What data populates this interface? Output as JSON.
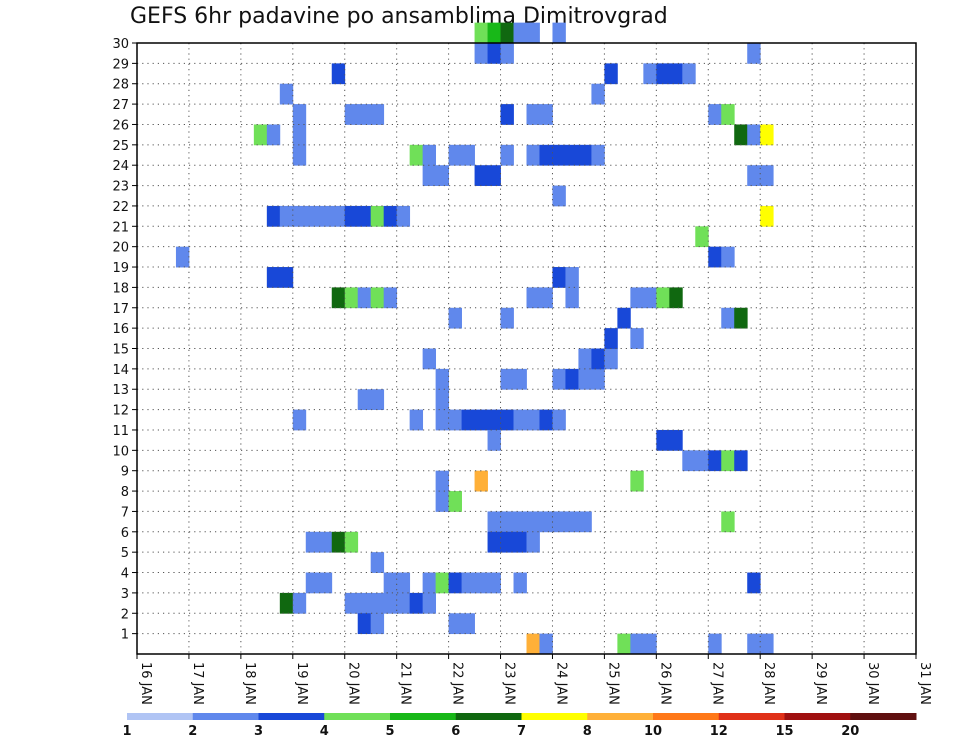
{
  "chart_data": {
    "type": "heatmap",
    "title": "GEFS 6hr padavine po ansamblima Dimitrovgrad",
    "xlabel": "",
    "ylabel": "",
    "x_ticks": [
      "16 JAN",
      "17 JAN",
      "18 JAN",
      "19 JAN",
      "20 JAN",
      "21 JAN",
      "22 JAN",
      "23 JAN",
      "24 JAN",
      "25 JAN",
      "26 JAN",
      "27 JAN",
      "28 JAN",
      "29 JAN",
      "30 JAN",
      "31 JAN"
    ],
    "y_ticks": [
      "1",
      "2",
      "3",
      "4",
      "5",
      "6",
      "7",
      "8",
      "9",
      "10",
      "11",
      "12",
      "13",
      "14",
      "15",
      "16",
      "17",
      "18",
      "19",
      "20",
      "21",
      "22",
      "23",
      "24",
      "25",
      "26",
      "27",
      "28",
      "29",
      "30"
    ],
    "xlim": [
      0,
      60
    ],
    "ylim": [
      0,
      30
    ],
    "grid": true,
    "colorbar": {
      "labels": [
        "1",
        "2",
        "3",
        "4",
        "5",
        "6",
        "7",
        "8",
        "10",
        "12",
        "15",
        "20"
      ],
      "colors": [
        "#b0c4f4",
        "#6088ec",
        "#1848d8",
        "#70e058",
        "#18b818",
        "#106810",
        "#ffff00",
        "#ffb038",
        "#ff7818",
        "#e03018",
        "#a01010",
        "#601010"
      ]
    },
    "cells": [
      [
        3,
        19,
        1
      ],
      [
        9,
        25,
        3
      ],
      [
        10,
        25,
        1
      ],
      [
        10,
        21,
        2
      ],
      [
        11,
        21,
        1
      ],
      [
        12,
        21,
        1
      ],
      [
        13,
        21,
        1
      ],
      [
        14,
        21,
        1
      ],
      [
        11,
        27,
        1
      ],
      [
        11,
        2,
        5
      ],
      [
        12,
        2,
        1
      ],
      [
        12,
        26,
        1
      ],
      [
        12,
        25,
        1
      ],
      [
        12,
        24,
        1
      ],
      [
        12,
        11,
        1
      ],
      [
        10,
        18,
        2
      ],
      [
        11,
        18,
        2
      ],
      [
        13,
        3,
        1
      ],
      [
        13,
        5,
        1
      ],
      [
        14,
        3,
        1
      ],
      [
        14,
        5,
        1
      ],
      [
        15,
        21,
        1
      ],
      [
        15,
        5,
        5
      ],
      [
        15,
        17,
        5
      ],
      [
        16,
        5,
        3
      ],
      [
        16,
        17,
        3
      ],
      [
        16,
        21,
        2
      ],
      [
        17,
        21,
        2
      ],
      [
        18,
        21,
        3
      ],
      [
        19,
        21,
        2
      ],
      [
        20,
        21,
        1
      ],
      [
        15,
        28,
        2
      ],
      [
        16,
        2,
        1
      ],
      [
        17,
        2,
        1
      ],
      [
        18,
        2,
        1
      ],
      [
        17,
        1,
        2
      ],
      [
        18,
        1,
        1
      ],
      [
        17,
        12,
        1
      ],
      [
        18,
        12,
        1
      ],
      [
        17,
        17,
        1
      ],
      [
        18,
        17,
        3
      ],
      [
        19,
        17,
        1
      ],
      [
        16,
        26,
        1
      ],
      [
        17,
        26,
        1
      ],
      [
        18,
        26,
        1
      ],
      [
        18,
        4,
        1
      ],
      [
        19,
        3,
        1
      ],
      [
        20,
        3,
        1
      ],
      [
        19,
        2,
        1
      ],
      [
        20,
        2,
        1
      ],
      [
        21,
        2,
        2
      ],
      [
        22,
        2,
        1
      ],
      [
        21,
        24,
        3
      ],
      [
        22,
        24,
        1
      ],
      [
        22,
        23,
        1
      ],
      [
        23,
        23,
        1
      ],
      [
        21,
        11,
        1
      ],
      [
        22,
        14,
        1
      ],
      [
        22,
        3,
        1
      ],
      [
        23,
        3,
        3
      ],
      [
        24,
        3,
        2
      ],
      [
        25,
        3,
        1
      ],
      [
        26,
        3,
        1
      ],
      [
        27,
        3,
        1
      ],
      [
        23,
        13,
        1
      ],
      [
        23,
        12,
        1
      ],
      [
        23,
        11,
        1
      ],
      [
        24,
        11,
        1
      ],
      [
        23,
        8,
        1
      ],
      [
        23,
        7,
        1
      ],
      [
        24,
        7,
        3
      ],
      [
        25,
        11,
        2
      ],
      [
        26,
        11,
        2
      ],
      [
        27,
        11,
        2
      ],
      [
        28,
        11,
        2
      ],
      [
        29,
        11,
        1
      ],
      [
        30,
        11,
        1
      ],
      [
        31,
        11,
        2
      ],
      [
        32,
        11,
        1
      ],
      [
        24,
        1,
        1
      ],
      [
        25,
        1,
        1
      ],
      [
        24,
        16,
        1
      ],
      [
        24,
        24,
        1
      ],
      [
        25,
        24,
        1
      ],
      [
        26,
        8,
        7
      ],
      [
        26,
        23,
        2
      ],
      [
        27,
        23,
        2
      ],
      [
        26,
        30,
        3
      ],
      [
        27,
        30,
        4
      ],
      [
        28,
        30,
        5
      ],
      [
        29,
        30,
        1
      ],
      [
        30,
        30,
        1
      ],
      [
        32,
        30,
        1
      ],
      [
        26,
        29,
        1
      ],
      [
        27,
        29,
        2
      ],
      [
        28,
        29,
        1
      ],
      [
        27,
        10,
        1
      ],
      [
        27,
        6,
        1
      ],
      [
        28,
        6,
        1
      ],
      [
        29,
        6,
        1
      ],
      [
        30,
        6,
        1
      ],
      [
        31,
        6,
        1
      ],
      [
        32,
        6,
        1
      ],
      [
        33,
        6,
        1
      ],
      [
        34,
        6,
        1
      ],
      [
        27,
        5,
        2
      ],
      [
        28,
        5,
        2
      ],
      [
        29,
        5,
        2
      ],
      [
        30,
        5,
        1
      ],
      [
        28,
        26,
        2
      ],
      [
        28,
        24,
        1
      ],
      [
        28,
        16,
        1
      ],
      [
        28,
        13,
        1
      ],
      [
        29,
        13,
        1
      ],
      [
        29,
        3,
        1
      ],
      [
        30,
        24,
        1
      ],
      [
        31,
        24,
        2
      ],
      [
        32,
        24,
        2
      ],
      [
        33,
        24,
        2
      ],
      [
        34,
        24,
        2
      ],
      [
        35,
        24,
        1
      ],
      [
        30,
        26,
        1
      ],
      [
        31,
        26,
        1
      ],
      [
        30,
        17,
        1
      ],
      [
        31,
        17,
        1
      ],
      [
        32,
        18,
        2
      ],
      [
        33,
        18,
        1
      ],
      [
        33,
        17,
        1
      ],
      [
        32,
        13,
        1
      ],
      [
        33,
        13,
        2
      ],
      [
        34,
        13,
        1
      ],
      [
        35,
        13,
        1
      ],
      [
        32,
        22,
        1
      ],
      [
        30,
        0,
        7
      ],
      [
        31,
        0,
        1
      ],
      [
        34,
        14,
        1
      ],
      [
        35,
        14,
        2
      ],
      [
        36,
        14,
        1
      ],
      [
        36,
        15,
        2
      ],
      [
        36,
        28,
        2
      ],
      [
        35,
        27,
        1
      ],
      [
        37,
        16,
        2
      ],
      [
        38,
        17,
        1
      ],
      [
        38,
        15,
        1
      ],
      [
        37,
        0,
        3
      ],
      [
        38,
        0,
        1
      ],
      [
        39,
        0,
        1
      ],
      [
        38,
        8,
        3
      ],
      [
        39,
        28,
        1
      ],
      [
        40,
        28,
        2
      ],
      [
        41,
        28,
        2
      ],
      [
        42,
        28,
        1
      ],
      [
        39,
        17,
        1
      ],
      [
        40,
        17,
        3
      ],
      [
        41,
        17,
        5
      ],
      [
        40,
        10,
        2
      ],
      [
        41,
        10,
        2
      ],
      [
        42,
        9,
        1
      ],
      [
        43,
        9,
        1
      ],
      [
        44,
        9,
        2
      ],
      [
        45,
        9,
        3
      ],
      [
        46,
        9,
        2
      ],
      [
        43,
        20,
        3
      ],
      [
        44,
        19,
        2
      ],
      [
        45,
        19,
        1
      ],
      [
        44,
        26,
        1
      ],
      [
        45,
        26,
        3
      ],
      [
        44,
        0,
        1
      ],
      [
        45,
        16,
        1
      ],
      [
        46,
        16,
        5
      ],
      [
        45,
        6,
        3
      ],
      [
        47,
        3,
        2
      ],
      [
        46,
        25,
        5
      ],
      [
        47,
        25,
        1
      ],
      [
        48,
        25,
        6
      ],
      [
        47,
        23,
        1
      ],
      [
        48,
        23,
        1
      ],
      [
        47,
        29,
        1
      ],
      [
        48,
        21,
        6
      ],
      [
        47,
        0,
        1
      ],
      [
        48,
        0,
        1
      ]
    ]
  }
}
